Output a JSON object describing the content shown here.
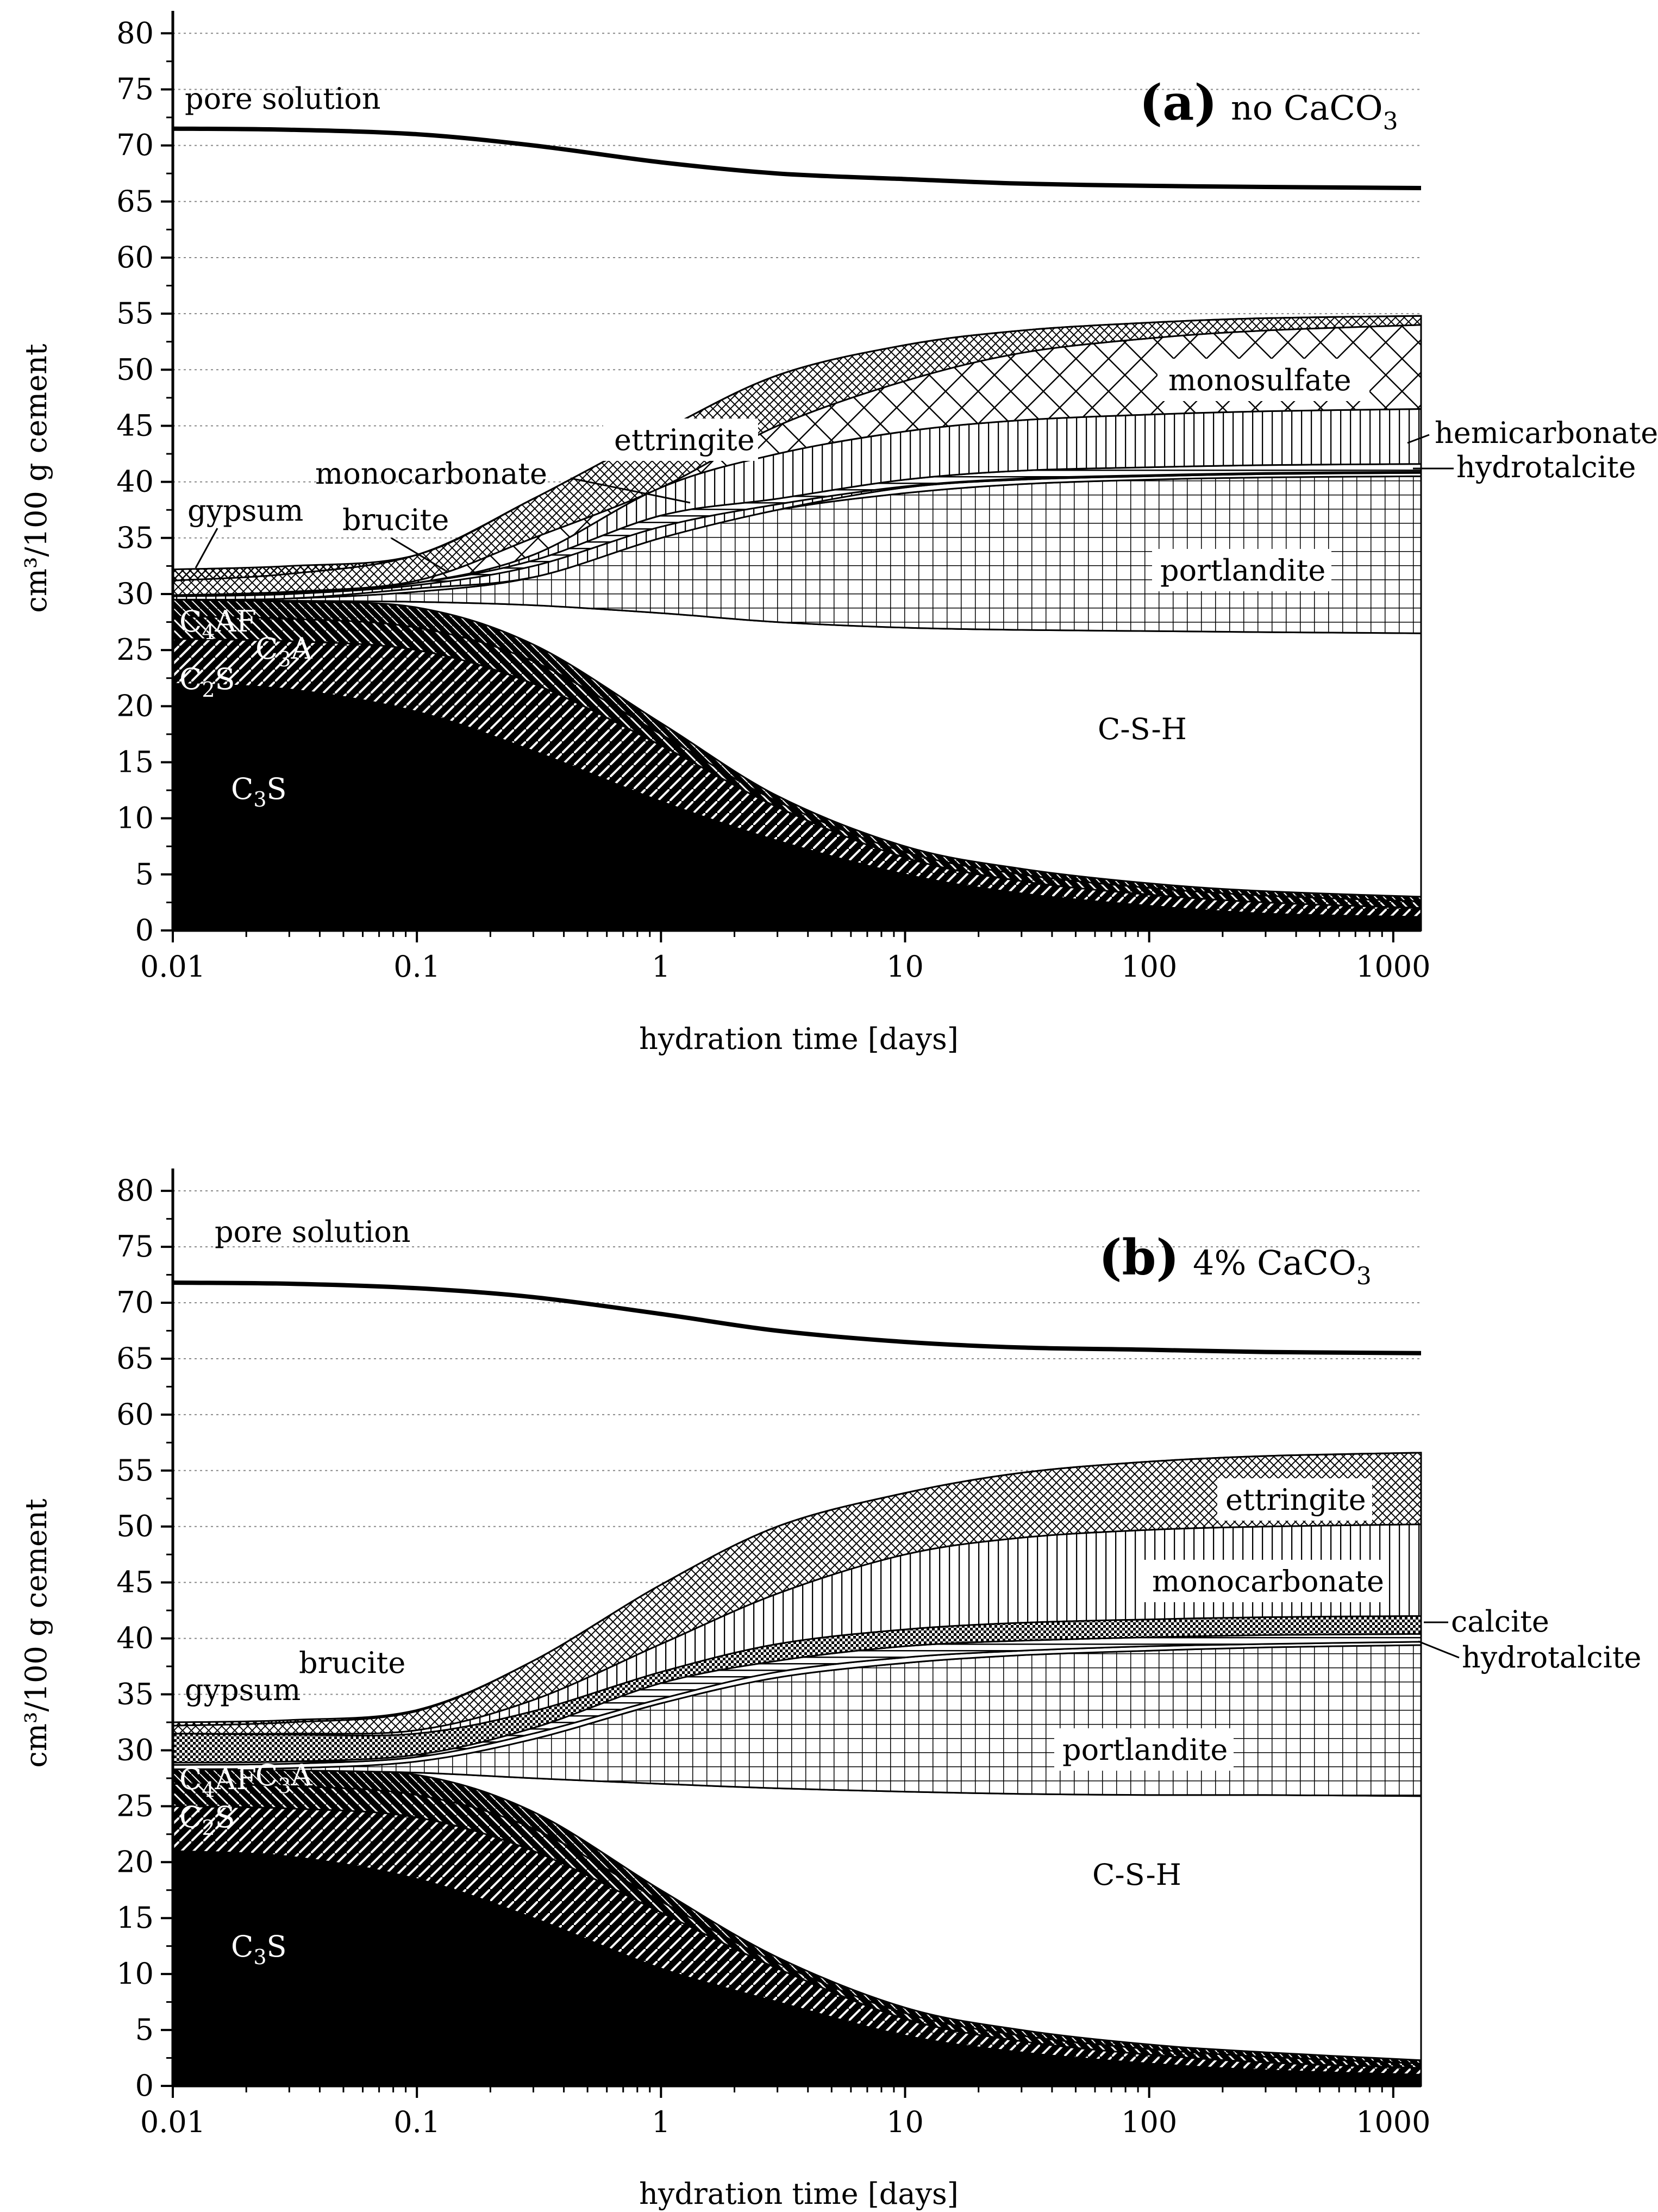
{
  "chart_data": [
    {
      "type": "area",
      "panel_letter": "(a)",
      "panel_condition": "no CaCO",
      "panel_condition_sub": "3",
      "xlabel": "hydration time [days]",
      "ylabel": "cm³/100 g cement",
      "xscale": "log",
      "xlim": [
        0.01,
        1300
      ],
      "ylim": [
        0,
        82
      ],
      "grid": "horizontal dotted every 5",
      "x_ticks": [
        "0.01",
        "0.1",
        "1",
        "10",
        "100",
        "1000"
      ],
      "y_ticks": [
        "0",
        "5",
        "10",
        "15",
        "20",
        "25",
        "30",
        "35",
        "40",
        "45",
        "50",
        "55",
        "60",
        "65",
        "70",
        "75",
        "80"
      ],
      "x": [
        0.01,
        0.03,
        0.1,
        0.3,
        1,
        3,
        10,
        30,
        100,
        300,
        1300
      ],
      "stacked_boundaries": [
        {
          "phase": "C3S",
          "upper": [
            22,
            21.5,
            19.5,
            16,
            11.5,
            8,
            5,
            3.3,
            2.2,
            1.5,
            1.2
          ]
        },
        {
          "phase": "C2S",
          "upper": [
            26,
            25.8,
            25,
            22,
            16.5,
            11,
            6.5,
            4.4,
            3.2,
            2.5,
            2.0
          ]
        },
        {
          "phase": "C3A",
          "upper": [
            28,
            27.8,
            27,
            24,
            17.5,
            11.5,
            7,
            5,
            3.8,
            3.1,
            2.6
          ]
        },
        {
          "phase": "C4AF",
          "upper": [
            29.5,
            29.3,
            28.8,
            25.5,
            18.5,
            12,
            7.5,
            5.5,
            4.2,
            3.5,
            3.0
          ]
        },
        {
          "phase": "C-S-H",
          "upper": [
            29.5,
            29.4,
            29.3,
            29,
            28.3,
            27.5,
            27,
            26.8,
            26.7,
            26.6,
            26.5
          ]
        },
        {
          "phase": "portlandite",
          "upper": [
            29.5,
            29.6,
            30.2,
            31.5,
            35,
            37.5,
            39,
            39.8,
            40.2,
            40.4,
            40.5
          ]
        },
        {
          "phase": "brucite",
          "upper": [
            29.5,
            29.6,
            30.5,
            31.5,
            35,
            37.5,
            39.5,
            40.2,
            40.5,
            40.7,
            40.8
          ]
        },
        {
          "phase": "monocarbonate",
          "upper": [
            29.8,
            30,
            30.8,
            32.5,
            36,
            38,
            39.6,
            40.3,
            40.6,
            40.8,
            40.9
          ]
        },
        {
          "phase": "hydrotalcite",
          "upper": [
            29.9,
            30.1,
            31,
            33,
            37,
            38.5,
            40.2,
            41,
            41.3,
            41.5,
            41.6
          ]
        },
        {
          "phase": "hemicarbonate",
          "upper": [
            29.9,
            30.1,
            31,
            33.5,
            39.5,
            42.5,
            44.5,
            45.5,
            46,
            46.3,
            46.5
          ]
        },
        {
          "phase": "monosulfate",
          "upper": [
            29.9,
            30.2,
            31.2,
            35,
            39.5,
            45,
            49,
            51.5,
            52.8,
            53.5,
            54
          ]
        },
        {
          "phase": "ettringite",
          "upper": [
            31.2,
            31.8,
            33.5,
            38.5,
            44.5,
            49.5,
            52.2,
            53.5,
            54.2,
            54.6,
            54.8
          ]
        },
        {
          "phase": "gypsum",
          "upper": [
            32.2,
            32.5,
            33.5,
            38.5,
            44.5,
            49.5,
            52.2,
            53.5,
            54.2,
            54.6,
            54.8
          ]
        }
      ],
      "pore_solution": [
        71.5,
        71.4,
        71,
        70,
        68.5,
        67.5,
        67,
        66.6,
        66.4,
        66.3,
        66.2
      ],
      "labels": {
        "pore_solution": "pore solution",
        "gypsum": "gypsum",
        "brucite": "brucite",
        "monocarbonate": "monocarbonate",
        "ettringite": "ettringite",
        "monosulfate": "monosulfate",
        "hemicarbonate": "hemicarbonate",
        "hydrotalcite": "hydrotalcite",
        "portlandite": "portlandite",
        "c4af": "C",
        "c4af_sub": "4",
        "c4af_rest": "AF",
        "c3a": "C",
        "c3a_sub": "3",
        "c3a_rest": "A",
        "c2s": "C",
        "c2s_sub": "2",
        "c2s_rest": "S",
        "csh": "C-S-H",
        "c3s": "C",
        "c3s_sub": "3",
        "c3s_rest": "S"
      }
    },
    {
      "type": "area",
      "panel_letter": "(b)",
      "panel_condition": "4% CaCO",
      "panel_condition_sub": "3",
      "xlabel": "hydration time [days]",
      "ylabel": "cm³/100 g cement",
      "xscale": "log",
      "xlim": [
        0.01,
        1300
      ],
      "ylim": [
        0,
        82
      ],
      "grid": "horizontal dotted every 5",
      "x_ticks": [
        "0.01",
        "0.1",
        "1",
        "10",
        "100",
        "1000"
      ],
      "y_ticks": [
        "0",
        "5",
        "10",
        "15",
        "20",
        "25",
        "30",
        "35",
        "40",
        "45",
        "50",
        "55",
        "60",
        "65",
        "70",
        "75",
        "80"
      ],
      "x": [
        0.01,
        0.03,
        0.1,
        0.3,
        1,
        3,
        10,
        30,
        100,
        300,
        1300
      ],
      "stacked_boundaries": [
        {
          "phase": "C3S",
          "upper": [
            21,
            20.5,
            18.5,
            15,
            10.5,
            7.5,
            4.5,
            3,
            2,
            1.4,
            1.0
          ]
        },
        {
          "phase": "C2S",
          "upper": [
            25,
            24.8,
            24,
            21,
            15.5,
            10.5,
            6,
            4,
            2.8,
            2.1,
            1.6
          ]
        },
        {
          "phase": "C3A",
          "upper": [
            27,
            26.8,
            26,
            23,
            16.5,
            11,
            6.5,
            4.5,
            3.3,
            2.6,
            2.0
          ]
        },
        {
          "phase": "C4AF",
          "upper": [
            28.3,
            28.2,
            27.8,
            24.5,
            17.5,
            11.5,
            7,
            5,
            3.7,
            3.0,
            2.3
          ]
        },
        {
          "phase": "C-S-H",
          "upper": [
            28.3,
            28.2,
            28.0,
            27.5,
            27.0,
            26.6,
            26.3,
            26.1,
            26.0,
            26.0,
            25.9
          ]
        },
        {
          "phase": "portlandite",
          "upper": [
            28.3,
            28.4,
            29.0,
            31.0,
            34.2,
            36.5,
            37.8,
            38.5,
            38.9,
            39.2,
            39.4
          ]
        },
        {
          "phase": "brucite",
          "upper": [
            28.7,
            28.8,
            29.4,
            31.5,
            34.6,
            37,
            38.3,
            38.9,
            39.3,
            39.5,
            39.7
          ]
        },
        {
          "phase": "hydrotalcite",
          "upper": [
            28.9,
            29.0,
            29.6,
            32.0,
            36,
            38,
            39.3,
            39.8,
            40.1,
            40.3,
            40.4
          ]
        },
        {
          "phase": "calcite",
          "upper": [
            31.5,
            31.4,
            31.5,
            33.5,
            37,
            39.5,
            40.8,
            41.4,
            41.7,
            41.9,
            42.0
          ]
        },
        {
          "phase": "monocarbonate",
          "upper": [
            31.5,
            31.5,
            31.8,
            34.5,
            39.5,
            44,
            47.5,
            49,
            49.7,
            50,
            50.2
          ]
        },
        {
          "phase": "ettringite",
          "upper": [
            32.2,
            32.5,
            33.5,
            38.0,
            44.8,
            50,
            53,
            54.8,
            55.8,
            56.3,
            56.6
          ]
        },
        {
          "phase": "gypsum",
          "upper": [
            32.5,
            32.7,
            33.6,
            38.0,
            44.8,
            50,
            53,
            54.8,
            55.8,
            56.3,
            56.6
          ]
        }
      ],
      "pore_solution": [
        71.8,
        71.7,
        71.3,
        70.5,
        69,
        67.5,
        66.5,
        66,
        65.8,
        65.6,
        65.5
      ],
      "labels": {
        "pore_solution": "pore solution",
        "gypsum": "gypsum",
        "brucite": "brucite",
        "ettringite": "ettringite",
        "monocarbonate": "monocarbonate",
        "calcite": "calcite",
        "hydrotalcite": "hydrotalcite",
        "portlandite": "portlandite",
        "c4af": "C",
        "c4af_sub": "4",
        "c4af_rest": "AF",
        "c3a": "C",
        "c3a_sub": "3",
        "c3a_rest": "A",
        "c2s": "C",
        "c2s_sub": "2",
        "c2s_rest": "S",
        "csh": "C-S-H",
        "c3s": "C",
        "c3s_sub": "3",
        "c3s_rest": "S"
      }
    }
  ]
}
